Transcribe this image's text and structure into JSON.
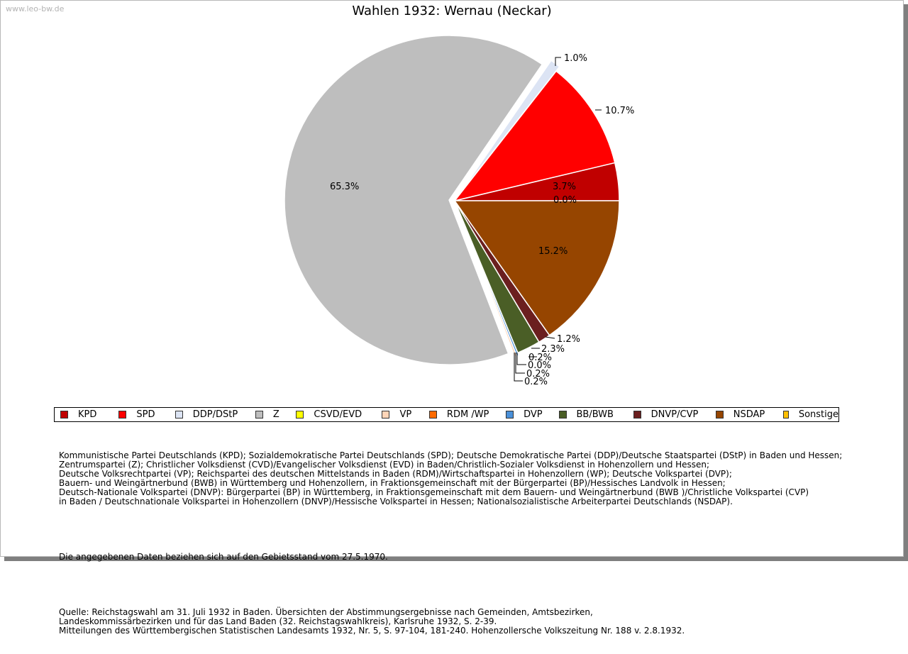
{
  "watermark": "www.leo-bw.de",
  "chart_data": {
    "type": "pie",
    "title": "Wahlen 1932: Wernau (Neckar)",
    "slices": [
      {
        "name": "KPD",
        "value": 3.7,
        "label": "3.7%",
        "color": "#c00000"
      },
      {
        "name": "SPD",
        "value": 10.7,
        "label": "10.7%",
        "color": "#ff0000"
      },
      {
        "name": "DDP/DStP",
        "value": 1.0,
        "label": "1.0%",
        "color": "#dce4f4"
      },
      {
        "name": "Z",
        "value": 65.3,
        "label": "65.3%",
        "color": "#bebebe"
      },
      {
        "name": "CSVD/EVD",
        "value": 0.0,
        "label": "",
        "color": "#ffff00"
      },
      {
        "name": "VP",
        "value": 0.2,
        "label": "0.2%",
        "color": "#ffd5b8"
      },
      {
        "name": "RDM /WP",
        "value": 0.0,
        "label": "0.0%",
        "color": "#ff6a00"
      },
      {
        "name": "DVP",
        "value": 0.2,
        "label": "0.2%",
        "color": "#4a90d9"
      },
      {
        "name": "BB/BWB",
        "value": 2.3,
        "label": "2.3%",
        "color": "#4a5e26"
      },
      {
        "name": "DNVP/CVP",
        "value": 1.2,
        "label": "1.2%",
        "color": "#6b1f1f"
      },
      {
        "name": "NSDAP",
        "value": 15.2,
        "label": "15.2%",
        "color": "#964500"
      },
      {
        "name": "Sonstige",
        "value": 0.0,
        "label": "0.0%",
        "color": "#ffc000"
      }
    ],
    "extra_labels": [
      "0.2%"
    ],
    "legend_position": "bottom"
  },
  "notes": {
    "parties": "Kommunistische Partei Deutschlands (KPD); Sozialdemokratische Partei Deutschlands (SPD); Deutsche Demokratische Partei (DDP)/Deutsche Staatspartei (DStP) in Baden und Hessen;\nZentrumspartei (Z); Christlicher Volksdienst (CVD)/Evangelischer Volksdienst (EVD) in Baden/Christlich-Sozialer Volksdienst in Hohenzollern und Hessen;\nDeutsche Volksrechtpartei (VP); Reichspartei des deutschen Mittelstands in Baden (RDM)/Wirtschaftspartei in Hohenzollern (WP); Deutsche Volkspartei (DVP);\nBauern- und Weingärtnerbund (BWB) in Württemberg und Hohenzollern, in Fraktionsgemeinschaft mit der Bürgerpartei (BP)/Hessisches Landvolk in Hessen;\nDeutsch-Nationale Volkspartei (DNVP): Bürgerpartei (BP) in Württemberg, in Fraktionsgemeinschaft mit dem Bauern- und Weingärtnerbund (BWB )/Christliche Volkspartei (CVP)\nin Baden / Deutschnationale Volkspartei in Hohenzollern (DNVP)/Hessische Volkspartei in Hessen; Nationalsozialistische Arbeiterpartei Deutschlands (NSDAP).",
    "gebiet": "Die angegebenen Daten beziehen sich auf den Gebietsstand vom 27.5.1970.",
    "quelle": "Quelle: Reichstagswahl am 31. Juli 1932 in Baden. Übersichten der Abstimmungsergebnisse nach Gemeinden, Amtsbezirken,\nLandeskommissärbezirken und für das Land Baden (32. Reichstagswahlkreis), Karlsruhe 1932, S. 2-39.\nMitteilungen des Württembergischen Statistischen Landesamts 1932, Nr. 5, S. 97-104, 181-240. Hohenzollersche Volkszeitung Nr. 188 v. 2.8.1932."
  }
}
